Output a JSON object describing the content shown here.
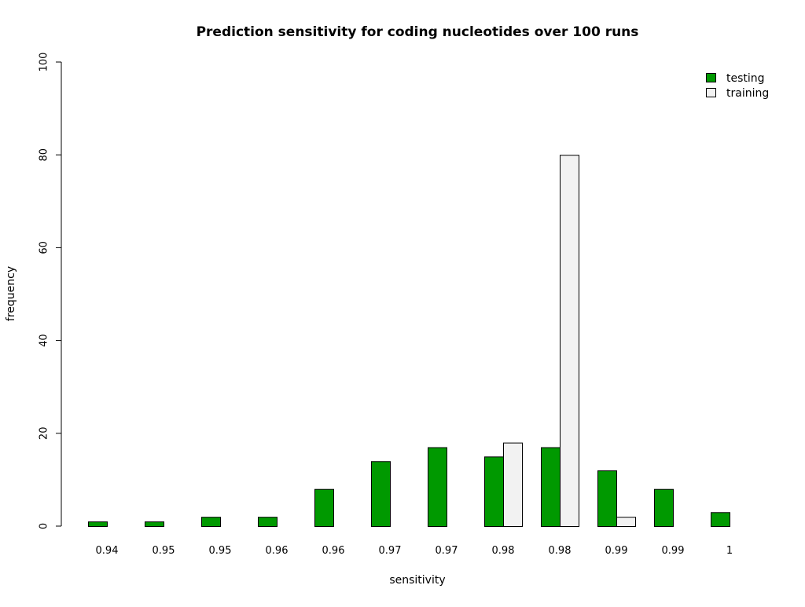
{
  "chart_data": {
    "type": "bar",
    "title": "Prediction sensitivity for coding nucleotides over 100 runs",
    "xlabel": "sensitivity",
    "ylabel": "frequency",
    "ylim": [
      0,
      100
    ],
    "yticks": [
      0,
      20,
      40,
      60,
      80,
      100
    ],
    "categories": [
      "0.94",
      "0.95",
      "0.95",
      "0.96",
      "0.96",
      "0.97",
      "0.97",
      "0.98",
      "0.98",
      "0.99",
      "0.99",
      "1"
    ],
    "series": [
      {
        "name": "testing",
        "color": "#009900",
        "values": [
          1,
          1,
          2,
          2,
          8,
          14,
          17,
          15,
          17,
          12,
          8,
          3
        ]
      },
      {
        "name": "training",
        "color": "#f2f2f2",
        "values": [
          0,
          0,
          0,
          0,
          0,
          0,
          0,
          18,
          80,
          2,
          0,
          0
        ]
      }
    ],
    "legend_position": "top-right",
    "grid": false
  }
}
